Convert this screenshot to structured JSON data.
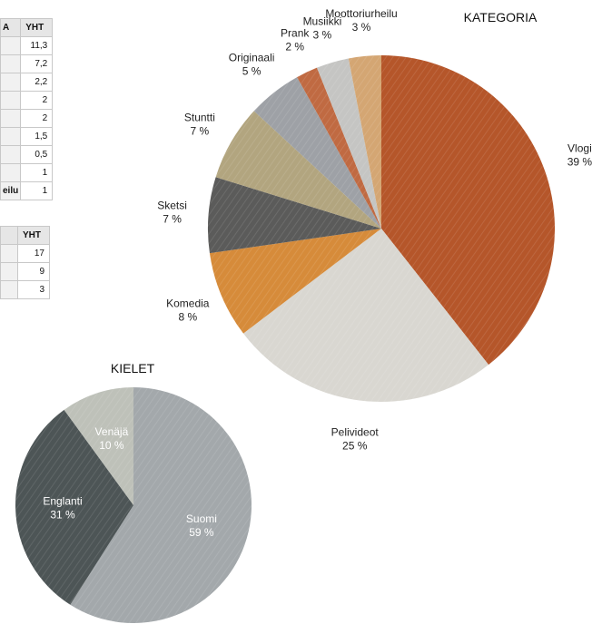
{
  "table1": {
    "headers": [
      "A",
      "YHT"
    ],
    "rows": [
      {
        "label": "",
        "value": "11,3"
      },
      {
        "label": "",
        "value": "7,2"
      },
      {
        "label": "",
        "value": "2,2"
      },
      {
        "label": "",
        "value": "2"
      },
      {
        "label": "",
        "value": "2"
      },
      {
        "label": "",
        "value": "1,5"
      },
      {
        "label": "",
        "value": "0,5"
      },
      {
        "label": "",
        "value": "1"
      },
      {
        "label": "eilu",
        "value": "1"
      }
    ]
  },
  "table2": {
    "headers": [
      "",
      "YHT"
    ],
    "rows": [
      {
        "label": "",
        "value": "17"
      },
      {
        "label": "",
        "value": "9"
      },
      {
        "label": "",
        "value": "3"
      }
    ]
  },
  "chart_data": [
    {
      "type": "pie",
      "title": "KATEGORIA",
      "slices": [
        {
          "name": "Vlogi",
          "pct": "39 %",
          "value": 39,
          "color": "#b5562a"
        },
        {
          "name": "Pelivideot",
          "pct": "25 %",
          "value": 25,
          "color": "#d9d7d1"
        },
        {
          "name": "Komedia",
          "pct": "8 %",
          "value": 8,
          "color": "#d68b3a"
        },
        {
          "name": "Sketsi",
          "pct": "7 %",
          "value": 7,
          "color": "#5b5b5a"
        },
        {
          "name": "Stuntti",
          "pct": "7 %",
          "value": 7,
          "color": "#b2a57f"
        },
        {
          "name": "Originaali",
          "pct": "5 %",
          "value": 5,
          "color": "#9ea1a6"
        },
        {
          "name": "Prank",
          "pct": "2 %",
          "value": 2,
          "color": "#c06a42"
        },
        {
          "name": "Musiikki",
          "pct": "3 %",
          "value": 3,
          "color": "#c5c5c3"
        },
        {
          "name": "Moottoriurheilu",
          "pct": "3 %",
          "value": 3,
          "color": "#d4a673"
        }
      ]
    },
    {
      "type": "pie",
      "title": "KIELET",
      "slices": [
        {
          "name": "Suomi",
          "pct": "59 %",
          "value": 59,
          "color": "#a3a8ab"
        },
        {
          "name": "Englanti",
          "pct": "31 %",
          "value": 31,
          "color": "#4d5556"
        },
        {
          "name": "Venäjä",
          "pct": "10 %",
          "value": 10,
          "color": "#bec1b9"
        }
      ]
    }
  ]
}
